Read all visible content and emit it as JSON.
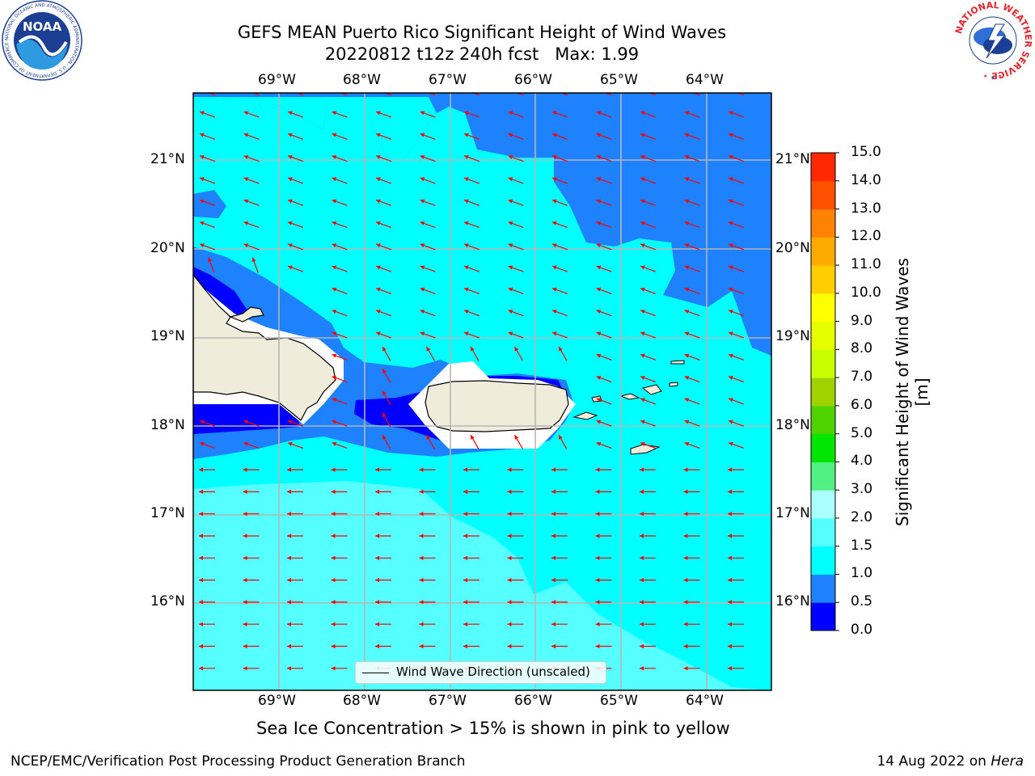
{
  "title": {
    "line1": "GEFS MEAN Puerto Rico Significant Height of Wind Waves",
    "line2": "20220812 t12z 240h fcst   Max: 1.99"
  },
  "axes": {
    "lon_labels": [
      "69°W",
      "68°W",
      "67°W",
      "66°W",
      "65°W",
      "64°W"
    ],
    "lat_labels": [
      "21°N",
      "20°N",
      "19°N",
      "18°N",
      "17°N",
      "16°N"
    ]
  },
  "legend": {
    "text": "Wind Wave Direction (unscaled)"
  },
  "colorbar": {
    "label": "Significant Height of Wind Waves [m]",
    "ticks": [
      "0.0",
      "0.5",
      "1.0",
      "1.5",
      "2.0",
      "3.0",
      "4.0",
      "5.0",
      "6.0",
      "7.0",
      "8.0",
      "9.0",
      "10.0",
      "11.0",
      "12.0",
      "13.0",
      "14.0",
      "15.0"
    ],
    "colors": [
      "#0000ff",
      "#1e82ff",
      "#00ffff",
      "#55ffff",
      "#aaffff",
      "#50f082",
      "#00e600",
      "#50d200",
      "#a0d200",
      "#c8ff00",
      "#e6ff00",
      "#ffff00",
      "#ffcd00",
      "#ffaa00",
      "#ff8200",
      "#ff5000",
      "#ff2800",
      "#ff0000"
    ]
  },
  "map_colors": {
    "land": "#efecdc",
    "band_0_0_5": "#0000ff",
    "band_0_5_1_0": "#1e82ff",
    "band_1_0_1_5": "#00ffff",
    "band_1_5_2_0": "#55ffff",
    "arrow": "#ff0000"
  },
  "note": "Sea Ice Concentration > 15% is shown in pink to yellow",
  "footer": {
    "left": "NCEP/EMC/Verification Post Processing Product Generation Branch",
    "right_prefix": "14 Aug 2022 on ",
    "right_host": "Hera"
  },
  "logos": {
    "noaa": {
      "text": "NOAA",
      "ring_text": "NATIONAL OCEANIC AND ATMOSPHERIC ADMINISTRATION · U.S. DEPARTMENT OF COMMERCE"
    },
    "nws": {
      "ring_text": "NATIONAL WEATHER SERVICE"
    }
  }
}
